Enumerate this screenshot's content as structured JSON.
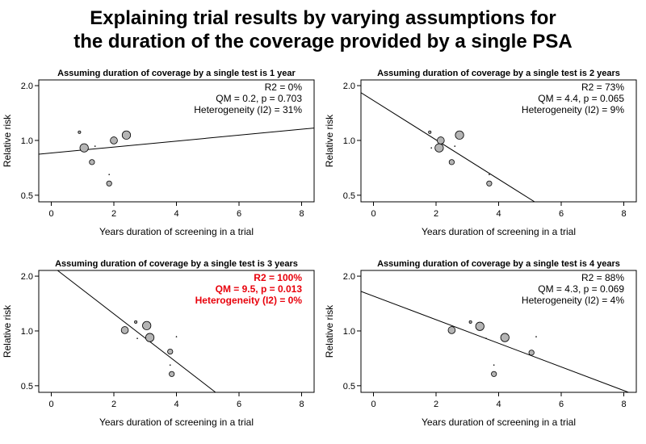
{
  "title_line1": "Explaining trial results by varying assumptions for",
  "title_line2": "the duration of the coverage provided by a single PSA",
  "colors": {
    "normal_text": "#000000",
    "highlight_text": "#e8000b",
    "point_fill": "#b4b4b4",
    "line": "#000000"
  },
  "chart_data": [
    {
      "type": "scatter",
      "title": "Assuming duration of coverage by a single test is 1 year",
      "xlabel": "Years duration of screening in a trial",
      "ylabel": "Relative risk",
      "xlim": [
        -0.4,
        8.4
      ],
      "ylim": [
        0.46,
        2.15
      ],
      "y_log_scale": true,
      "xticks": [
        0,
        2,
        4,
        6,
        8
      ],
      "xtick_labels": [
        "0",
        "2",
        "4",
        "6",
        "8"
      ],
      "yticks": [
        0.5,
        1.0,
        2.0
      ],
      "ytick_labels": [
        "0.5",
        "1.0",
        "2.0"
      ],
      "stats": [
        "R2 = 0%",
        "QM = 0.2, p = 0.703",
        "Heterogeneity (I2) = 31%"
      ],
      "stats_highlight": false,
      "points": [
        {
          "x": 0.9,
          "y": 1.11,
          "weight": 1.5
        },
        {
          "x": 1.05,
          "y": 0.91,
          "weight": 5
        },
        {
          "x": 1.3,
          "y": 0.76,
          "weight": 2.5
        },
        {
          "x": 1.4,
          "y": 0.93,
          "weight": 1
        },
        {
          "x": 1.85,
          "y": 0.65,
          "weight": 1
        },
        {
          "x": 1.85,
          "y": 0.58,
          "weight": 2.5
        },
        {
          "x": 2.0,
          "y": 1.0,
          "weight": 4
        },
        {
          "x": 2.4,
          "y": 1.07,
          "weight": 5
        }
      ],
      "regression_line": [
        {
          "x": -0.4,
          "y": 0.84
        },
        {
          "x": 8.4,
          "y": 1.17
        }
      ]
    },
    {
      "type": "scatter",
      "title": "Assuming duration of coverage by a single test is 2 years",
      "xlabel": "Years duration of screening in a trial",
      "ylabel": "Relative risk",
      "xlim": [
        -0.4,
        8.4
      ],
      "ylim": [
        0.46,
        2.15
      ],
      "y_log_scale": true,
      "xticks": [
        0,
        2,
        4,
        6,
        8
      ],
      "xtick_labels": [
        "0",
        "2",
        "4",
        "6",
        "8"
      ],
      "yticks": [
        0.5,
        1.0,
        2.0
      ],
      "ytick_labels": [
        "0.5",
        "1.0",
        "2.0"
      ],
      "stats": [
        "R2 = 73%",
        "QM = 4.4, p = 0.065",
        "Heterogeneity (I2) = 9%"
      ],
      "stats_highlight": false,
      "points": [
        {
          "x": 1.8,
          "y": 1.11,
          "weight": 1.5
        },
        {
          "x": 1.85,
          "y": 0.91,
          "weight": 1
        },
        {
          "x": 2.1,
          "y": 0.91,
          "weight": 5
        },
        {
          "x": 2.15,
          "y": 1.0,
          "weight": 4
        },
        {
          "x": 2.5,
          "y": 0.76,
          "weight": 2.5
        },
        {
          "x": 2.6,
          "y": 0.93,
          "weight": 1
        },
        {
          "x": 2.75,
          "y": 1.07,
          "weight": 5
        },
        {
          "x": 3.7,
          "y": 0.65,
          "weight": 1
        },
        {
          "x": 3.7,
          "y": 0.58,
          "weight": 2.5
        }
      ],
      "regression_line": [
        {
          "x": -0.4,
          "y": 1.83
        },
        {
          "x": 5.15,
          "y": 0.46
        }
      ]
    },
    {
      "type": "scatter",
      "title": "Assuming duration of coverage by a single test is 3 years",
      "xlabel": "Years duration of screening in a trial",
      "ylabel": "Relative risk",
      "xlim": [
        -0.4,
        8.4
      ],
      "ylim": [
        0.46,
        2.15
      ],
      "y_log_scale": true,
      "xticks": [
        0,
        2,
        4,
        6,
        8
      ],
      "xtick_labels": [
        "0",
        "2",
        "4",
        "6",
        "8"
      ],
      "yticks": [
        0.5,
        1.0,
        2.0
      ],
      "ytick_labels": [
        "0.5",
        "1.0",
        "2.0"
      ],
      "stats": [
        "R2 = 100%",
        "QM = 9.5, p = 0.013",
        "Heterogeneity (I2) = 0%"
      ],
      "stats_highlight": true,
      "points": [
        {
          "x": 2.35,
          "y": 1.01,
          "weight": 4
        },
        {
          "x": 2.7,
          "y": 1.12,
          "weight": 1.5
        },
        {
          "x": 2.75,
          "y": 0.91,
          "weight": 1
        },
        {
          "x": 3.05,
          "y": 1.07,
          "weight": 5
        },
        {
          "x": 3.15,
          "y": 0.92,
          "weight": 5
        },
        {
          "x": 3.8,
          "y": 0.77,
          "weight": 2.5
        },
        {
          "x": 3.8,
          "y": 0.65,
          "weight": 1
        },
        {
          "x": 3.85,
          "y": 0.58,
          "weight": 2.5
        },
        {
          "x": 4.0,
          "y": 0.93,
          "weight": 1
        }
      ],
      "regression_line": [
        {
          "x": 0.2,
          "y": 2.15
        },
        {
          "x": 5.25,
          "y": 0.46
        }
      ]
    },
    {
      "type": "scatter",
      "title": "Assuming duration of coverage by a single test is 4 years",
      "xlabel": "Years duration of screening in a trial",
      "ylabel": "Relative risk",
      "xlim": [
        -0.4,
        8.4
      ],
      "ylim": [
        0.46,
        2.15
      ],
      "y_log_scale": true,
      "xticks": [
        0,
        2,
        4,
        6,
        8
      ],
      "xtick_labels": [
        "0",
        "2",
        "4",
        "6",
        "8"
      ],
      "yticks": [
        0.5,
        1.0,
        2.0
      ],
      "ytick_labels": [
        "0.5",
        "1.0",
        "2.0"
      ],
      "stats": [
        "R2 = 88%",
        "QM = 4.3, p = 0.069",
        "Heterogeneity (I2) = 4%"
      ],
      "stats_highlight": false,
      "points": [
        {
          "x": 2.5,
          "y": 1.01,
          "weight": 4
        },
        {
          "x": 3.1,
          "y": 1.12,
          "weight": 1.5
        },
        {
          "x": 3.4,
          "y": 1.06,
          "weight": 5
        },
        {
          "x": 3.6,
          "y": 0.91,
          "weight": 1
        },
        {
          "x": 3.85,
          "y": 0.65,
          "weight": 1
        },
        {
          "x": 3.85,
          "y": 0.58,
          "weight": 2.5
        },
        {
          "x": 4.2,
          "y": 0.92,
          "weight": 5
        },
        {
          "x": 5.05,
          "y": 0.76,
          "weight": 2.5
        },
        {
          "x": 5.2,
          "y": 0.93,
          "weight": 1
        }
      ],
      "regression_line": [
        {
          "x": -0.4,
          "y": 1.65
        },
        {
          "x": 8.15,
          "y": 0.46
        }
      ]
    }
  ]
}
